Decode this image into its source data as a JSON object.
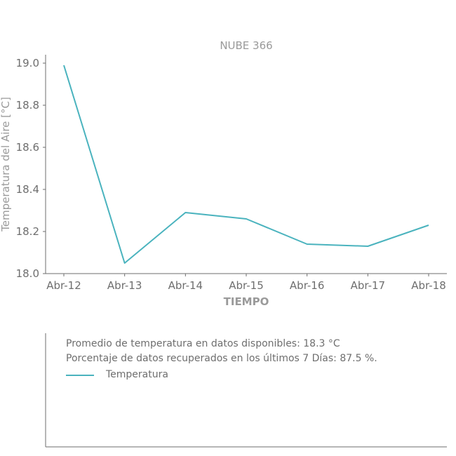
{
  "chart_data": {
    "type": "line",
    "title": "NUBE 366",
    "xlabel": "TIEMPO",
    "ylabel": "Temperatura del Aire [°C]",
    "categories": [
      "Abr-12",
      "Abr-13",
      "Abr-14",
      "Abr-15",
      "Abr-16",
      "Abr-17",
      "Abr-18"
    ],
    "series": [
      {
        "name": "Temperatura",
        "color": "#4ab3be",
        "values": [
          18.99,
          18.05,
          18.29,
          18.26,
          18.14,
          18.13,
          18.23
        ]
      }
    ],
    "ylim": [
      18.0,
      19.0
    ],
    "yticks": [
      "18.0",
      "18.2",
      "18.4",
      "18.6",
      "18.8",
      "19.0"
    ],
    "grid": false,
    "legend_position": "bottom"
  },
  "info": {
    "line1": "Promedio de temperatura en datos disponibles: 18.3 °C",
    "line2": "Porcentaje de datos recuperados en los últimos 7 Días: 87.5 %."
  },
  "colors": {
    "axis": "#6e6e6e",
    "label": "#9a9a9a"
  }
}
